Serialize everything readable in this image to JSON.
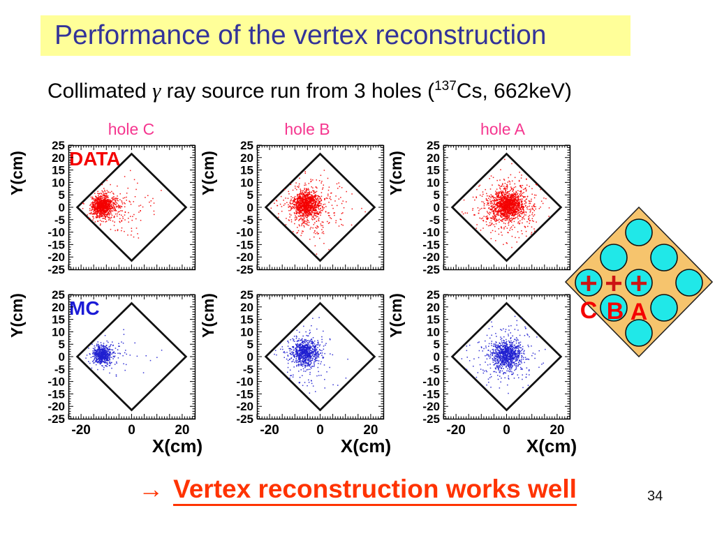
{
  "slide": {
    "title": "Performance of the vertex reconstruction",
    "title_color": "#333399",
    "title_bg": "#ffff99",
    "subtitle": {
      "prefix": "Collimated ",
      "gamma": "γ",
      "mid": " ray source run from 3 holes (",
      "isotope_sup": "137",
      "suffix": "Cs, 662keV)"
    },
    "conclusion": {
      "arrow": "→",
      "text": "Vertex reconstruction works well",
      "color": "#ff3300"
    },
    "page_number": "34"
  },
  "plots": {
    "col_titles": [
      "hole C",
      "hole B",
      "hole A"
    ],
    "col_title_color": "#f5368f",
    "row_labels": [
      {
        "text": "DATA",
        "color": "#f40000"
      },
      {
        "text": "MC",
        "color": "#1b1bd6"
      }
    ],
    "xlabel": "X(cm)",
    "ylabel": "Y(cm)",
    "axes": {
      "xlim": [
        -25,
        25
      ],
      "ylim": [
        -25,
        25
      ],
      "yticks": [
        25,
        20,
        15,
        10,
        5,
        0,
        -5,
        -10,
        -15,
        -20,
        -25
      ],
      "xtick_labels": [
        -20,
        0,
        20
      ],
      "tick_step_major": 5,
      "tick_step_minor": 1,
      "grid": false
    },
    "detector_outline": {
      "shape": "square rotated 45 deg",
      "half_diagonal_cm": 21.5,
      "stroke": "#111111"
    }
  },
  "chart_data": [
    {
      "id": "plot-data-hole-c",
      "type": "scatter",
      "row_label": "DATA",
      "col_title": "hole C",
      "row_index": 0,
      "col_index": 0,
      "color": "#f40000",
      "seed": 101,
      "centroid_cm": [
        -11.5,
        0.5
      ],
      "core_sigma_cm": 2.0,
      "n_points": 1090,
      "clusters": [
        {
          "n": 780,
          "cx": -11.8,
          "cy": 0.4,
          "sx": 1.9,
          "sy": 2.1
        },
        {
          "n": 190,
          "cx": -9.5,
          "cy": 0.5,
          "sx": 3.4,
          "sy": 3.0
        },
        {
          "n": 120,
          "cx": -3.5,
          "cy": 0.5,
          "sx": 7.5,
          "sy": 6.5
        }
      ]
    },
    {
      "id": "plot-data-hole-b",
      "type": "scatter",
      "row_label": "DATA",
      "col_title": "hole B",
      "row_index": 0,
      "col_index": 1,
      "color": "#f40000",
      "seed": 102,
      "centroid_cm": [
        -5.5,
        1.0
      ],
      "core_sigma_cm": 2.7,
      "n_points": 1300,
      "clusters": [
        {
          "n": 950,
          "cx": -5.5,
          "cy": 1.2,
          "sx": 2.7,
          "sy": 2.5
        },
        {
          "n": 280,
          "cx": -5.0,
          "cy": 0.5,
          "sx": 5.5,
          "sy": 6.0
        },
        {
          "n": 70,
          "cx": -2.0,
          "cy": -1.5,
          "sx": 10.0,
          "sy": 9.0
        }
      ]
    },
    {
      "id": "plot-data-hole-a",
      "type": "scatter",
      "row_label": "DATA",
      "col_title": "hole A",
      "row_index": 0,
      "col_index": 2,
      "color": "#f40000",
      "seed": 103,
      "centroid_cm": [
        0.5,
        0.8
      ],
      "core_sigma_cm": 3.1,
      "n_points": 1570,
      "clusters": [
        {
          "n": 1150,
          "cx": 0.5,
          "cy": 0.8,
          "sx": 3.1,
          "sy": 2.9
        },
        {
          "n": 330,
          "cx": 0.3,
          "cy": 0.5,
          "sx": 6.5,
          "sy": 6.5
        },
        {
          "n": 90,
          "cx": 0.0,
          "cy": 0.0,
          "sx": 11.0,
          "sy": 10.0
        }
      ]
    },
    {
      "id": "plot-mc-hole-c",
      "type": "scatter",
      "row_label": "MC",
      "col_title": "hole C",
      "row_index": 1,
      "col_index": 0,
      "color": "#2020d0",
      "seed": 104,
      "centroid_cm": [
        -11.5,
        0.8
      ],
      "core_sigma_cm": 1.8,
      "n_points": 620,
      "clusters": [
        {
          "n": 520,
          "cx": -11.6,
          "cy": 0.8,
          "sx": 1.7,
          "sy": 1.8
        },
        {
          "n": 80,
          "cx": -9.5,
          "cy": 1.0,
          "sx": 3.8,
          "sy": 3.4
        },
        {
          "n": 20,
          "cx": -4.0,
          "cy": 0.0,
          "sx": 8.0,
          "sy": 7.0
        }
      ]
    },
    {
      "id": "plot-mc-hole-b",
      "type": "scatter",
      "row_label": "MC",
      "col_title": "hole B",
      "row_index": 1,
      "col_index": 1,
      "color": "#2020d0",
      "seed": 105,
      "centroid_cm": [
        -6.0,
        1.5
      ],
      "core_sigma_cm": 2.5,
      "n_points": 875,
      "clusters": [
        {
          "n": 660,
          "cx": -6.0,
          "cy": 1.6,
          "sx": 2.5,
          "sy": 2.4
        },
        {
          "n": 180,
          "cx": -5.5,
          "cy": 0.8,
          "sx": 5.5,
          "sy": 5.5
        },
        {
          "n": 35,
          "cx": -2.0,
          "cy": -1.0,
          "sx": 9.5,
          "sy": 9.0
        }
      ]
    },
    {
      "id": "plot-mc-hole-a",
      "type": "scatter",
      "row_label": "MC",
      "col_title": "hole A",
      "row_index": 1,
      "col_index": 2,
      "color": "#2020d0",
      "seed": 106,
      "centroid_cm": [
        0.0,
        0.6
      ],
      "core_sigma_cm": 2.8,
      "n_points": 1015,
      "clusters": [
        {
          "n": 760,
          "cx": 0.2,
          "cy": 0.8,
          "sx": 2.8,
          "sy": 2.7
        },
        {
          "n": 210,
          "cx": 0.0,
          "cy": 0.3,
          "sx": 6.0,
          "sy": 6.0
        },
        {
          "n": 45,
          "cx": 0.0,
          "cy": 0.0,
          "sx": 10.5,
          "sy": 9.5
        }
      ]
    }
  ],
  "diagram": {
    "description": "detector cross-section: rotated square with 9 PMT holes, source positions marked",
    "body_fill": "#f6c46d",
    "body_stroke": "#222222",
    "hole_fill": "#20e8e8",
    "hole_stroke": "#111111",
    "labels": [
      "C",
      "B",
      "A"
    ],
    "label_color": "#f40000",
    "plus_color": "#cc1414"
  }
}
